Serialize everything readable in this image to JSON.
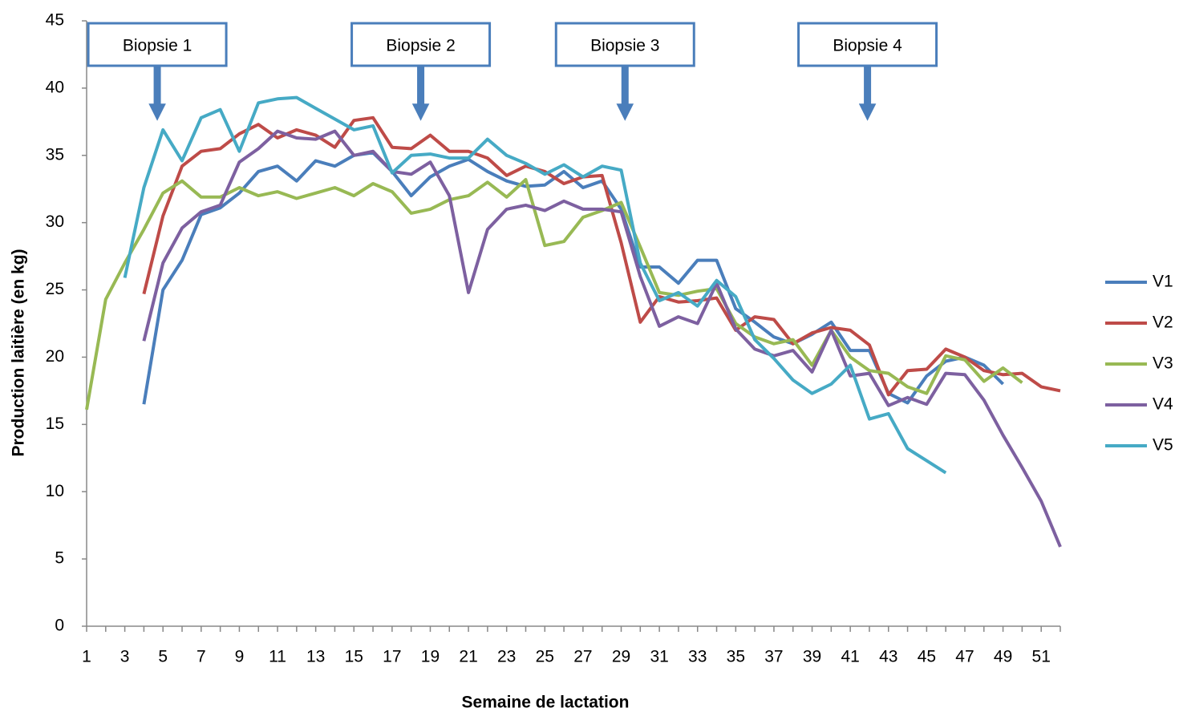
{
  "chart_data": {
    "type": "line",
    "y_label": "Production laitière (en kg)",
    "x_label": "Semaine de lactation",
    "x": [
      1,
      2,
      3,
      4,
      5,
      6,
      7,
      8,
      9,
      10,
      11,
      12,
      13,
      14,
      15,
      16,
      17,
      18,
      19,
      20,
      21,
      22,
      23,
      24,
      25,
      26,
      27,
      28,
      29,
      30,
      31,
      32,
      33,
      34,
      35,
      36,
      37,
      38,
      39,
      40,
      41,
      42,
      43,
      44,
      45,
      46,
      47,
      48,
      49,
      50,
      51,
      52
    ],
    "xlim": [
      1,
      52
    ],
    "xticks": [
      1,
      3,
      5,
      7,
      9,
      11,
      13,
      15,
      17,
      19,
      21,
      23,
      25,
      27,
      29,
      31,
      33,
      35,
      37,
      39,
      41,
      43,
      45,
      47,
      49,
      51
    ],
    "ylim": [
      0,
      45
    ],
    "yticks": [
      0,
      5,
      10,
      15,
      20,
      25,
      30,
      35,
      40,
      45
    ],
    "grid": false,
    "legend": "right",
    "annotations": [
      {
        "text": "Biopsie 1",
        "x": 4.7
      },
      {
        "text": "Biopsie 2",
        "x": 18.5
      },
      {
        "text": "Biopsie 3",
        "x": 29.2
      },
      {
        "text": "Biopsie 4",
        "x": 41.9
      }
    ],
    "series": [
      {
        "name": "V1",
        "color": "#4a7ebb",
        "values": [
          null,
          null,
          null,
          16.5,
          25,
          27.2,
          30.6,
          31.1,
          32.2,
          33.8,
          34.2,
          33.1,
          34.6,
          34.2,
          35.0,
          35.2,
          33.8,
          32.0,
          33.4,
          34.2,
          34.7,
          33.8,
          33.1,
          32.7,
          32.8,
          33.8,
          32.6,
          33.1,
          31.0,
          26.7,
          26.7,
          25.5,
          27.2,
          27.2,
          23.6,
          22.6,
          21.5,
          21.0,
          21.7,
          22.6,
          20.5,
          20.5,
          17.3,
          16.6,
          18.6,
          19.7,
          20.0,
          19.4,
          18.0,
          null,
          null,
          null
        ]
      },
      {
        "name": "V2",
        "color": "#be4b48",
        "values": [
          null,
          null,
          null,
          24.7,
          30.5,
          34.2,
          35.3,
          35.5,
          36.6,
          37.3,
          36.3,
          36.9,
          36.5,
          35.6,
          37.6,
          37.8,
          35.6,
          35.5,
          36.5,
          35.3,
          35.3,
          34.8,
          33.5,
          34.2,
          33.8,
          32.9,
          33.4,
          33.5,
          28.5,
          22.6,
          24.5,
          24.1,
          24.2,
          24.4,
          22.0,
          23.0,
          22.8,
          21.0,
          21.8,
          22.2,
          22.0,
          20.9,
          17.2,
          19.0,
          19.1,
          20.6,
          20.0,
          19.0,
          18.7,
          18.8,
          17.8,
          17.5
        ]
      },
      {
        "name": "V3",
        "color": "#98b954",
        "values": [
          16.1,
          24.3,
          27.0,
          29.5,
          32.2,
          33.1,
          31.9,
          31.9,
          32.6,
          32.0,
          32.3,
          31.8,
          32.2,
          32.6,
          32.0,
          32.9,
          32.3,
          30.7,
          31.0,
          31.7,
          32.0,
          33.0,
          31.9,
          33.2,
          28.3,
          28.6,
          30.4,
          30.9,
          31.5,
          28.2,
          24.8,
          24.6,
          24.9,
          25.1,
          22.5,
          21.5,
          21.0,
          21.3,
          19.4,
          22.0,
          20.0,
          19.0,
          18.8,
          17.8,
          17.3,
          20.1,
          19.8,
          18.2,
          19.2,
          18.1,
          null,
          null
        ]
      },
      {
        "name": "V4",
        "color": "#7d60a0",
        "values": [
          null,
          null,
          null,
          21.2,
          27.0,
          29.6,
          30.8,
          31.3,
          34.5,
          35.5,
          36.8,
          36.3,
          36.2,
          36.8,
          35.0,
          35.3,
          33.8,
          33.6,
          34.5,
          32.0,
          24.8,
          29.5,
          31.0,
          31.3,
          30.9,
          31.6,
          31.0,
          31.0,
          30.8,
          26.0,
          22.3,
          23.0,
          22.5,
          25.5,
          22.1,
          20.6,
          20.1,
          20.5,
          18.9,
          22.0,
          18.6,
          18.8,
          16.4,
          17.0,
          16.5,
          18.8,
          18.7,
          16.8,
          14.2,
          11.8,
          9.3,
          5.9
        ]
      },
      {
        "name": "V5",
        "color": "#46aac5",
        "values": [
          null,
          null,
          25.9,
          32.6,
          36.9,
          34.6,
          37.8,
          38.4,
          35.3,
          38.9,
          39.2,
          39.3,
          38.5,
          37.7,
          36.9,
          37.2,
          33.7,
          35.0,
          35.1,
          34.8,
          34.8,
          36.2,
          35.0,
          34.4,
          33.6,
          34.3,
          33.4,
          34.2,
          33.9,
          27.0,
          24.2,
          24.8,
          23.8,
          25.7,
          24.5,
          21.3,
          19.9,
          18.3,
          17.3,
          18.0,
          19.4,
          15.4,
          15.8,
          13.2,
          12.3,
          11.4,
          null,
          null,
          null,
          null,
          null,
          null
        ]
      }
    ]
  }
}
